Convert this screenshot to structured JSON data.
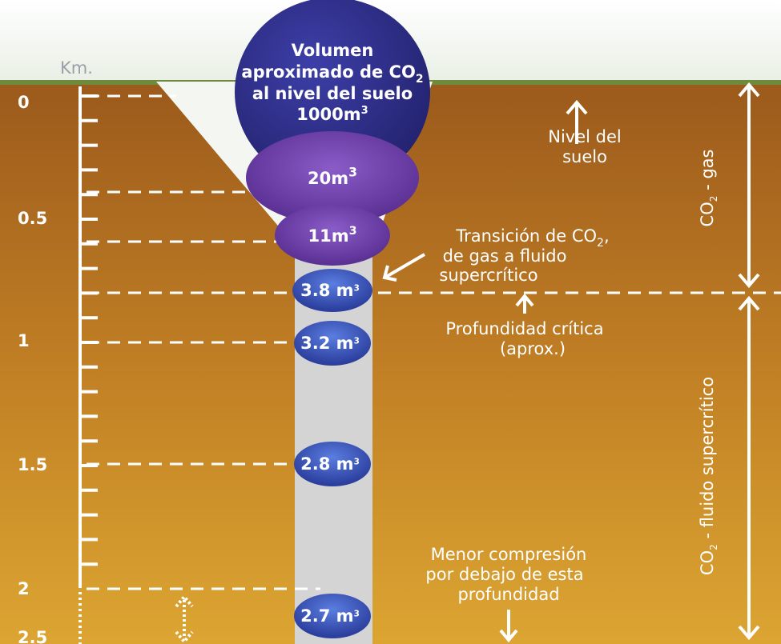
{
  "scale": {
    "unit": "Km.",
    "depths": [
      0,
      0.5,
      1,
      1.5,
      2,
      2.5
    ]
  },
  "bubbles": [
    {
      "lines": [
        "Volumen",
        "aproximado de CO",
        "2",
        "al nivel del suelo",
        "1000m",
        "3"
      ]
    },
    {
      "value": "20m",
      "sup": "3"
    },
    {
      "value": "11m",
      "sup": "3"
    },
    {
      "value": "3.8 m",
      "sup": "3"
    },
    {
      "value": "3.2 m",
      "sup": "3"
    },
    {
      "value": "2.8 m",
      "sup": "3"
    },
    {
      "value": "2.7 m",
      "sup": "3"
    }
  ],
  "annotations": {
    "ground_level": [
      "Nivel del",
      "suelo"
    ],
    "transition": [
      "Transición de CO",
      "2",
      ",",
      "de gas a fluido",
      "supercrítico"
    ],
    "critical_depth": [
      "Profundidad crítica",
      "(aprox.)"
    ],
    "less_compression": [
      "Menor compresión",
      "por debajo de esta",
      "profundidad"
    ]
  },
  "zones": {
    "gas": [
      "CO",
      "2",
      " - gas"
    ],
    "supercritical": [
      "CO",
      "2",
      " - fluido supercrítico"
    ]
  }
}
